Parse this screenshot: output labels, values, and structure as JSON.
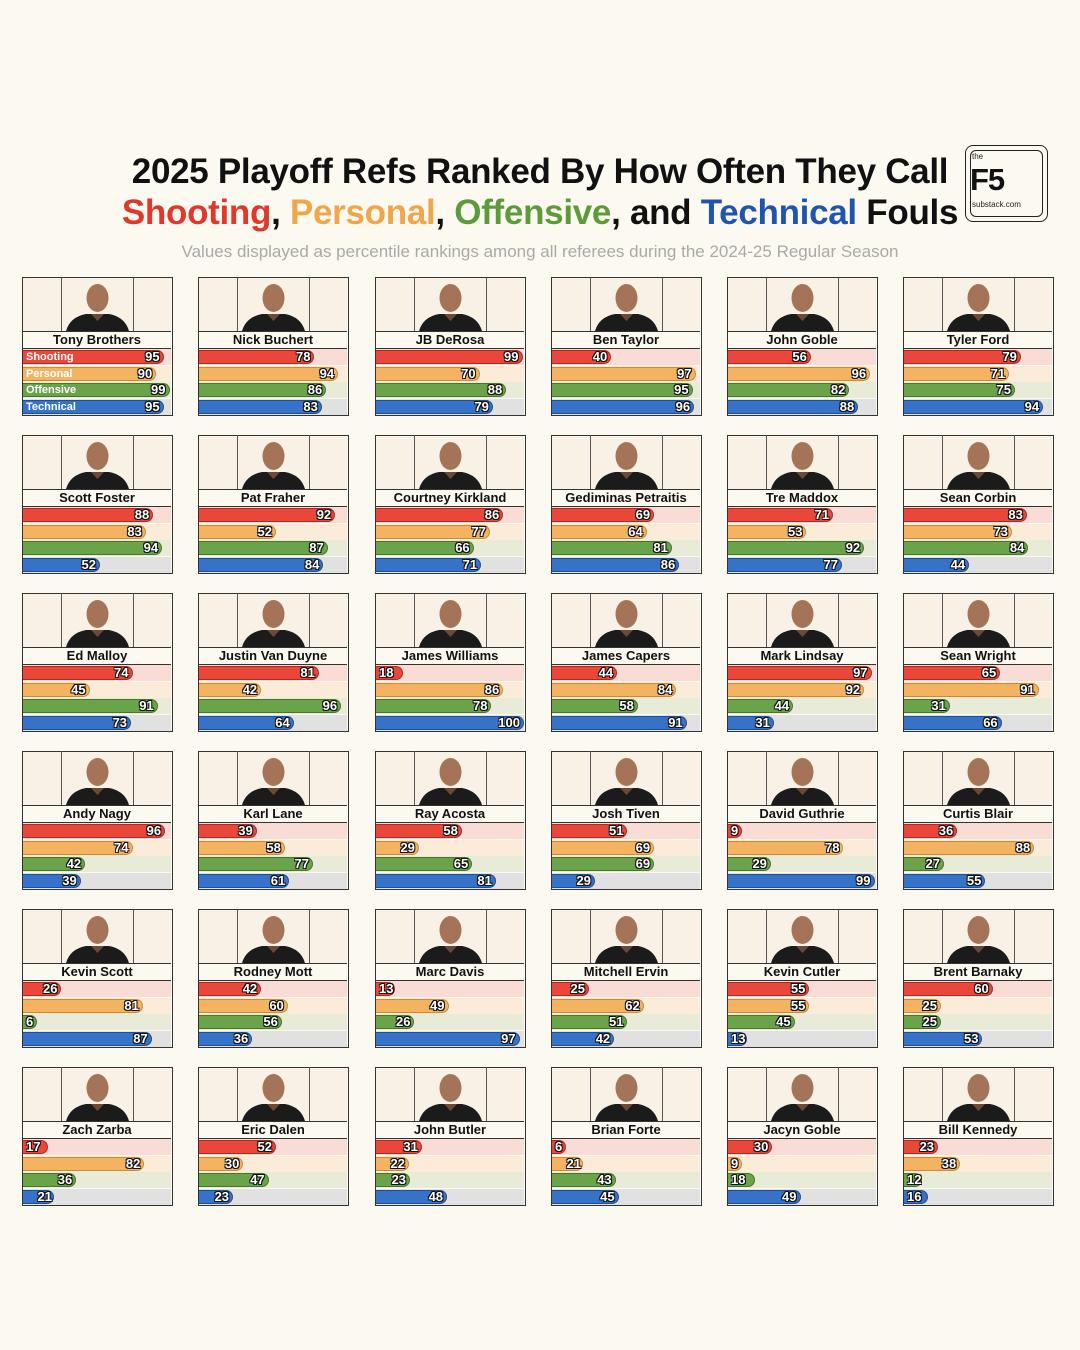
{
  "header": {
    "title_line1": "2025 Playoff Refs Ranked By How Often They Call",
    "title_line2": [
      {
        "text": "Shooting",
        "color": "#e0392b"
      },
      {
        "text": ", ",
        "color": "#111111"
      },
      {
        "text": "Personal",
        "color": "#f0a64a"
      },
      {
        "text": ", ",
        "color": "#111111"
      },
      {
        "text": "Offensive",
        "color": "#5d9b3a"
      },
      {
        "text": ", and ",
        "color": "#111111"
      },
      {
        "text": "Technical",
        "color": "#1f55b0"
      },
      {
        "text": " Fouls",
        "color": "#111111"
      }
    ],
    "subtitle": "Values displayed as percentile rankings among all referees during the 2024-25 Regular Season"
  },
  "logo": {
    "top": "the",
    "main": "F5",
    "bottom": "substack.com"
  },
  "chart_data": {
    "type": "bar",
    "xlim": [
      0,
      100
    ],
    "categories": [
      "Shooting",
      "Personal",
      "Offensive",
      "Technical"
    ],
    "colors": {
      "Shooting": {
        "bar": "#e8473a",
        "border": "#b5261d",
        "track": "#f9dcd6"
      },
      "Personal": {
        "bar": "#f4b360",
        "border": "#d08a2e",
        "track": "#faecd8"
      },
      "Offensive": {
        "bar": "#6aa34a",
        "border": "#3f7a24",
        "track": "#e8ebd7"
      },
      "Technical": {
        "bar": "#3672c7",
        "border": "#1d4e98",
        "track": "#e1e1e1"
      }
    },
    "referees": [
      {
        "name": "Tony Brothers",
        "values": [
          95,
          90,
          99,
          95
        ]
      },
      {
        "name": "Nick Buchert",
        "values": [
          78,
          94,
          86,
          83
        ]
      },
      {
        "name": "JB DeRosa",
        "values": [
          99,
          70,
          88,
          79
        ]
      },
      {
        "name": "Ben Taylor",
        "values": [
          40,
          97,
          95,
          96
        ]
      },
      {
        "name": "John Goble",
        "values": [
          56,
          96,
          82,
          88
        ]
      },
      {
        "name": "Tyler Ford",
        "values": [
          79,
          71,
          75,
          94
        ]
      },
      {
        "name": "Scott Foster",
        "values": [
          88,
          83,
          94,
          52
        ]
      },
      {
        "name": "Pat Fraher",
        "values": [
          92,
          52,
          87,
          84
        ]
      },
      {
        "name": "Courtney Kirkland",
        "values": [
          86,
          77,
          66,
          71
        ]
      },
      {
        "name": "Gediminas Petraitis",
        "values": [
          69,
          64,
          81,
          86
        ]
      },
      {
        "name": "Tre Maddox",
        "values": [
          71,
          53,
          92,
          77
        ]
      },
      {
        "name": "Sean Corbin",
        "values": [
          83,
          73,
          84,
          44
        ]
      },
      {
        "name": "Ed Malloy",
        "values": [
          74,
          45,
          91,
          73
        ]
      },
      {
        "name": "Justin Van Duyne",
        "values": [
          81,
          42,
          96,
          64
        ]
      },
      {
        "name": "James Williams",
        "values": [
          18,
          86,
          78,
          100
        ]
      },
      {
        "name": "James Capers",
        "values": [
          44,
          84,
          58,
          91
        ]
      },
      {
        "name": "Mark Lindsay",
        "values": [
          97,
          92,
          44,
          31
        ]
      },
      {
        "name": "Sean Wright",
        "values": [
          65,
          91,
          31,
          66
        ]
      },
      {
        "name": "Andy Nagy",
        "values": [
          96,
          74,
          42,
          39
        ]
      },
      {
        "name": "Karl Lane",
        "values": [
          39,
          58,
          77,
          61
        ]
      },
      {
        "name": "Ray Acosta",
        "values": [
          58,
          29,
          65,
          81
        ]
      },
      {
        "name": "Josh Tiven",
        "values": [
          51,
          69,
          69,
          29
        ]
      },
      {
        "name": "David Guthrie",
        "values": [
          9,
          78,
          29,
          99
        ]
      },
      {
        "name": "Curtis Blair",
        "values": [
          36,
          88,
          27,
          55
        ]
      },
      {
        "name": "Kevin Scott",
        "values": [
          26,
          81,
          6,
          87
        ]
      },
      {
        "name": "Rodney Mott",
        "values": [
          42,
          60,
          56,
          36
        ]
      },
      {
        "name": "Marc Davis",
        "values": [
          13,
          49,
          26,
          97
        ]
      },
      {
        "name": "Mitchell Ervin",
        "values": [
          25,
          62,
          51,
          42
        ]
      },
      {
        "name": "Kevin Cutler",
        "values": [
          55,
          55,
          45,
          13
        ]
      },
      {
        "name": "Brent Barnaky",
        "values": [
          60,
          25,
          25,
          53
        ]
      },
      {
        "name": "Zach Zarba",
        "values": [
          17,
          82,
          36,
          21
        ]
      },
      {
        "name": "Eric Dalen",
        "values": [
          52,
          30,
          47,
          23
        ]
      },
      {
        "name": "John Butler",
        "values": [
          31,
          22,
          23,
          48
        ]
      },
      {
        "name": "Brian Forte",
        "values": [
          6,
          21,
          43,
          45
        ]
      },
      {
        "name": "Jacyn Goble",
        "values": [
          30,
          9,
          18,
          49
        ]
      },
      {
        "name": "Bill Kennedy",
        "values": [
          23,
          38,
          12,
          16
        ]
      }
    ]
  }
}
